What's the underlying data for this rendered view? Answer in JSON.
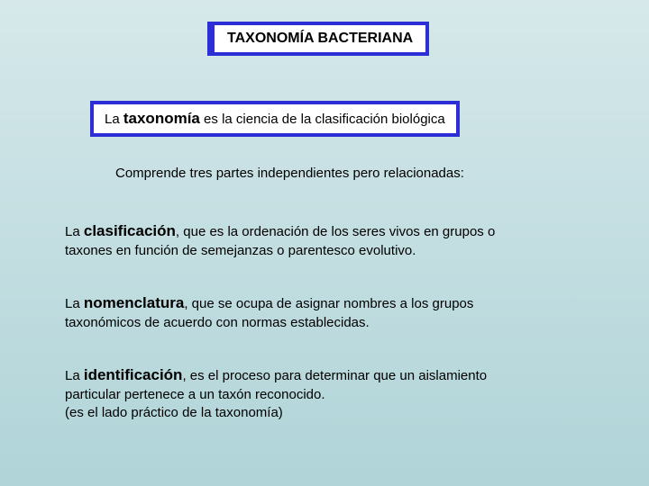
{
  "colors": {
    "bg_top": "#d6e8ea",
    "bg_bottom": "#b0d4d8",
    "border": "#2e2ed6",
    "box_fill": "#ffffff",
    "text": "#000000"
  },
  "title": "TAXONOMÍA BACTERIANA",
  "definition": {
    "prefix": "La ",
    "term": "taxonomía",
    "suffix": " es la ciencia de la clasificación biológica"
  },
  "subtitle": "Comprende tres partes independientes pero relacionadas:",
  "items": [
    {
      "prefix": "La ",
      "term": "clasificación",
      "rest1": ", que es la ordenación de los seres vivos en grupos o",
      "rest2": " taxones en función de semejanzas o parentesco evolutivo."
    },
    {
      "prefix": "La ",
      "term": "nomenclatura",
      "rest1": ", que se ocupa de asignar nombres a los grupos",
      "rest2": "taxonómicos  de acuerdo con normas establecidas."
    },
    {
      "prefix": "La ",
      "term": "identificación",
      "rest1": ", es el proceso para determinar que un aislamiento",
      "rest2": "particular pertenece a un taxón reconocido.",
      "rest3": "(es el lado práctico de la taxonomía)"
    }
  ]
}
